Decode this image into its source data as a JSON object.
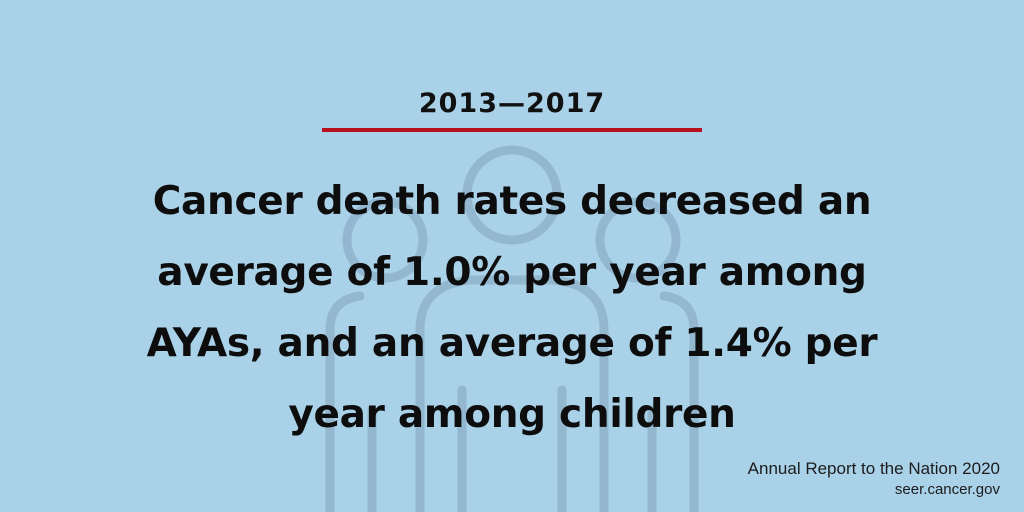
{
  "theme": {
    "background": "#a9d1e8",
    "accent": "#b5121b",
    "text": "#0d0d0d",
    "figure_outline": "#8fb3cb"
  },
  "header": {
    "date_range": "2013—2017"
  },
  "headline": {
    "lines": [
      "Cancer death rates decreased an",
      "average of 1.0% per year among",
      "AYAs, and an average of 1.4% per",
      "year among children"
    ]
  },
  "footer": {
    "report_title": "Annual Report to the Nation 2020",
    "website": "seer.cancer.gov"
  },
  "decorations": {
    "background_icon": "people-outline-icon"
  }
}
